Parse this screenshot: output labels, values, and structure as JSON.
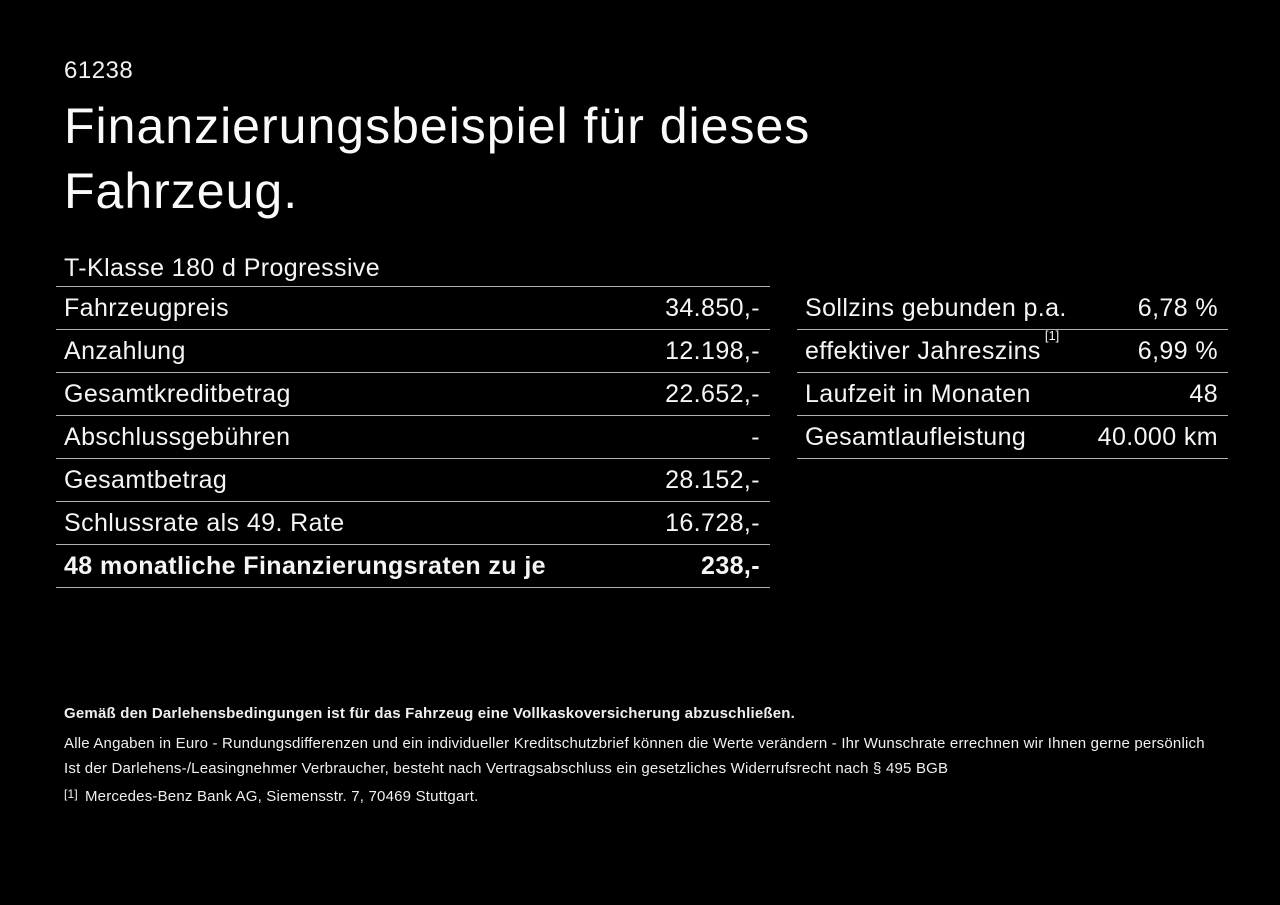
{
  "page": {
    "code": "61238",
    "title": "Finanzierungsbeispiel für dieses Fahrzeug.",
    "vehicle_model": "T-Klasse 180 d Progressive"
  },
  "colors": {
    "background": "#000000",
    "text": "#f5f5f5",
    "divider": "#b0b0b0"
  },
  "finance_table": {
    "rows": [
      {
        "label": "Fahrzeugpreis",
        "value": "34.850,-"
      },
      {
        "label": "Anzahlung",
        "value": "12.198,-"
      },
      {
        "label": "Gesamtkreditbetrag",
        "value": "22.652,-"
      },
      {
        "label": "Abschlussgebühren",
        "value": "-"
      },
      {
        "label": "Gesamtbetrag",
        "value": "28.152,-"
      },
      {
        "label": "Schlussrate als 49. Rate",
        "value": "16.728,-"
      },
      {
        "label": "48 monatliche Finanzierungsraten zu je",
        "value": "238,-"
      }
    ]
  },
  "conditions_table": {
    "rows": [
      {
        "label": "Sollzins gebunden p.a.",
        "value": "6,78 %"
      },
      {
        "label": "effektiver Jahreszins",
        "sup": "[1]",
        "value": "6,99 %"
      },
      {
        "label": "Laufzeit in Monaten",
        "value": "48"
      },
      {
        "label": "Gesamtlaufleistung",
        "value": "40.000 km"
      }
    ]
  },
  "footer": {
    "insurance_note": "Gemäß den Darlehensbedingungen ist für das Fahrzeug eine Vollkaskoversicherung abzuschließen.",
    "disclaimer_line1": "Alle Angaben in Euro - Rundungsdifferenzen und ein individueller Kreditschutzbrief können die Werte verändern - Ihr Wunschrate errechnen wir Ihnen gerne persönlich",
    "disclaimer_line2": "Ist der Darlehens-/Leasingnehmer Verbraucher, besteht nach Vertragsabschluss ein gesetzliches Widerrufsrecht nach § 495 BGB",
    "footnote_marker": "[1]",
    "footnote_text": "Mercedes-Benz Bank AG, Siemensstr. 7, 70469 Stuttgart."
  }
}
